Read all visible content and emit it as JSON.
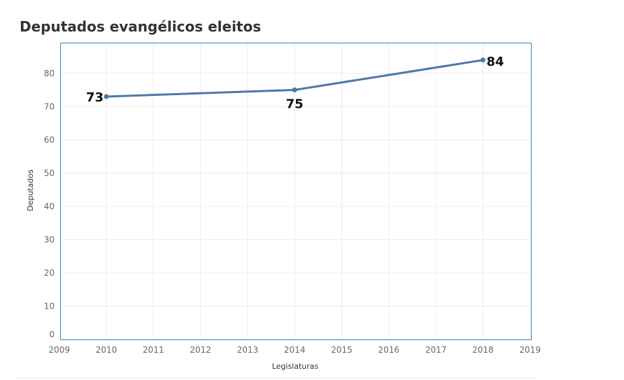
{
  "chart_data": {
    "type": "line",
    "title": "Deputados evangélicos eleitos",
    "xlabel": "Legislaturas",
    "ylabel": "Deputados",
    "xlim": [
      2009,
      2019
    ],
    "ylim": [
      0,
      89
    ],
    "x_ticks": [
      "2009",
      "2010",
      "2011",
      "2012",
      "2013",
      "2014",
      "2015",
      "2016",
      "2017",
      "2018",
      "2019"
    ],
    "y_ticks": [
      "0",
      "10",
      "20",
      "30",
      "40",
      "50",
      "60",
      "70",
      "80"
    ],
    "grid": true,
    "series": [
      {
        "name": "Deputados",
        "color": "#4e79a7",
        "x": [
          2010,
          2014,
          2018
        ],
        "values": [
          73,
          75,
          84
        ],
        "labels": [
          "73",
          "75",
          "84"
        ]
      }
    ]
  },
  "colors": {
    "frame": "#2b8cbe",
    "grid": "#ececec",
    "line": "#4e79a7"
  }
}
